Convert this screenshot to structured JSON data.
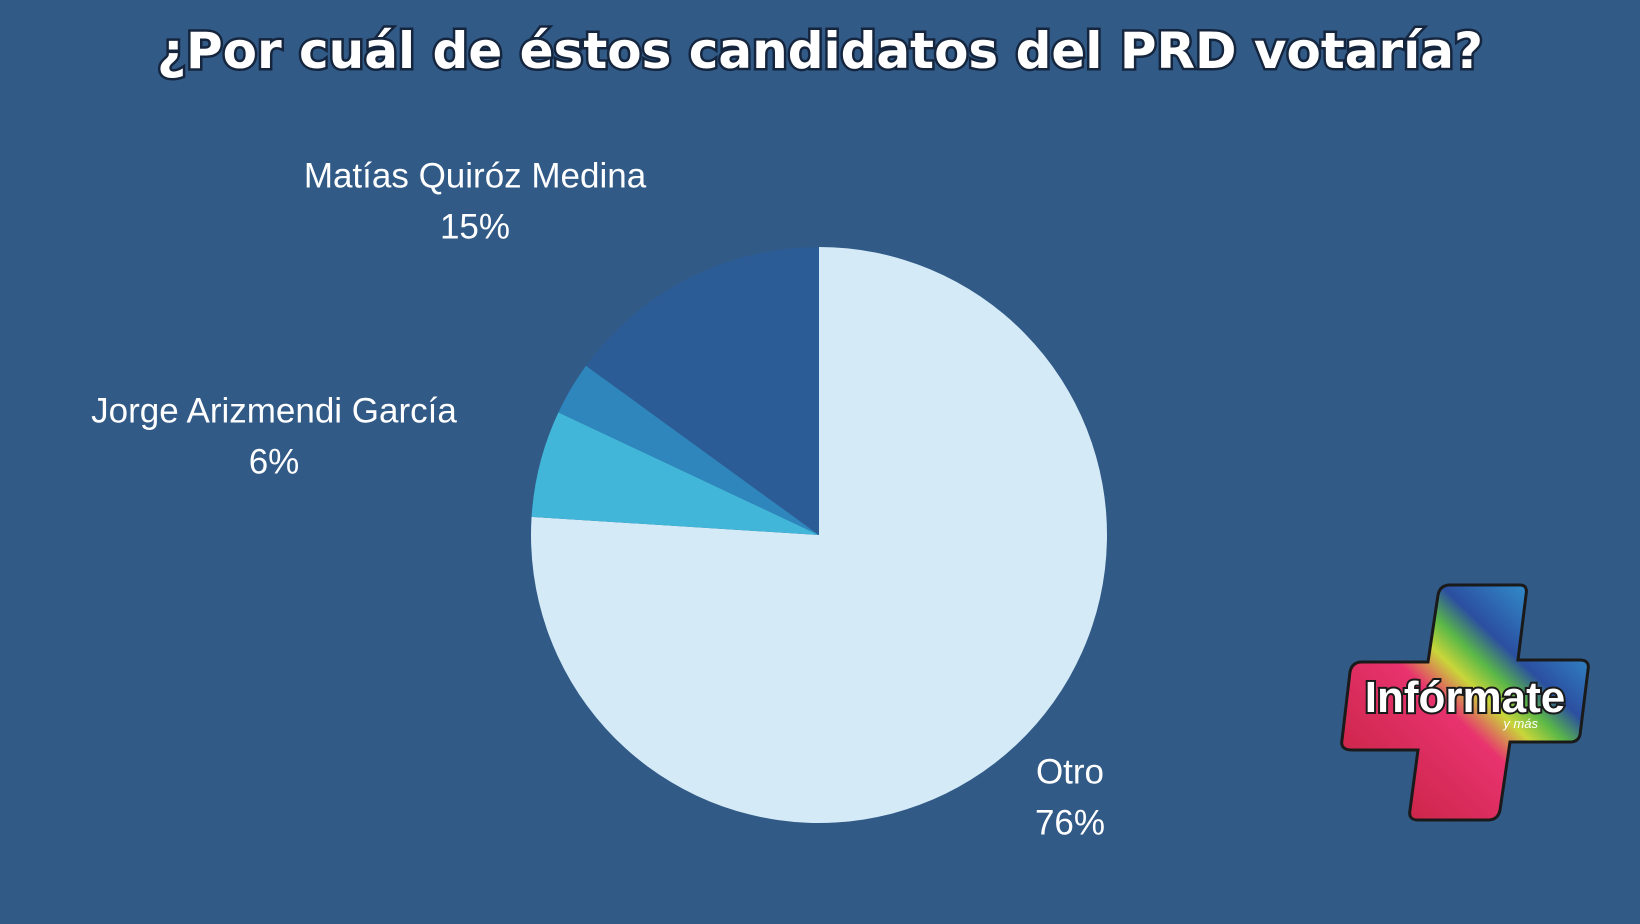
{
  "chart_data": {
    "type": "pie",
    "title": "¿Por cuál de éstos candidatos del PRD votaría?",
    "categories": [
      "Otro",
      "Jorge Arizmendi García",
      null,
      "Matías Quiróz Medina"
    ],
    "values": [
      76,
      6,
      3,
      15
    ],
    "value_labels": [
      "76%",
      "6%",
      null,
      "15%"
    ],
    "colors": [
      "#d4eaf7",
      "#41b6d8",
      "#2e86bd",
      "#2c5c95"
    ],
    "start_angle": 0,
    "direction": "clockwise"
  },
  "logo": {
    "text": "Infórmate",
    "subtext": "y más"
  }
}
